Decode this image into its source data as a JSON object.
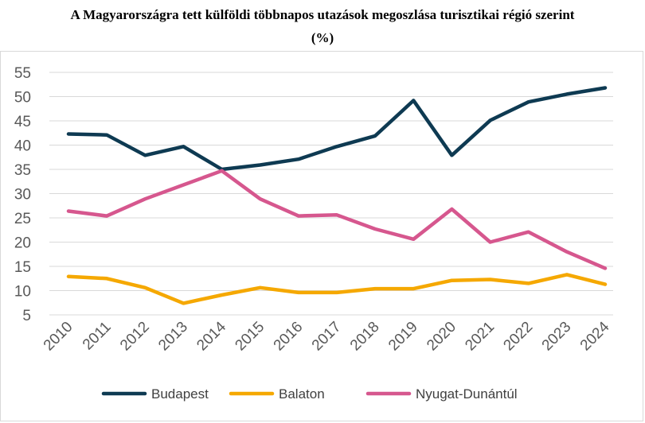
{
  "chart_data": {
    "type": "line",
    "title_line1": "A Magyarországra tett külföldi többnapos utazások megoszlása turisztikai régió szerint",
    "title_line2": "(%)",
    "xlabel": "",
    "ylabel": "",
    "categories": [
      "2010",
      "2011",
      "2012",
      "2013",
      "2014",
      "2015",
      "2016",
      "2017",
      "2018",
      "2019",
      "2020",
      "2021",
      "2022",
      "2023",
      "2024"
    ],
    "ylim": [
      5,
      55
    ],
    "yticks": [
      5,
      10,
      15,
      20,
      25,
      30,
      35,
      40,
      45,
      50,
      55
    ],
    "grid": "horizontal",
    "legend_position": "bottom",
    "series": [
      {
        "name": "Budapest",
        "color": "#0e3a52",
        "values": [
          42.3,
          42.1,
          37.9,
          39.7,
          35.0,
          35.9,
          37.1,
          39.7,
          41.9,
          49.2,
          37.9,
          45.1,
          48.9,
          50.5,
          51.8
        ]
      },
      {
        "name": "Balaton",
        "color": "#f5a800",
        "values": [
          12.9,
          12.5,
          10.6,
          7.4,
          9.1,
          10.6,
          9.6,
          9.6,
          10.4,
          10.4,
          12.1,
          12.3,
          11.5,
          13.3,
          11.3
        ]
      },
      {
        "name": "Nyugat-Dunántúl",
        "color": "#d6578e",
        "values": [
          26.4,
          25.4,
          28.9,
          31.8,
          34.7,
          28.9,
          25.4,
          25.6,
          22.7,
          20.6,
          26.8,
          20.0,
          22.1,
          18.0,
          14.6
        ]
      }
    ]
  }
}
